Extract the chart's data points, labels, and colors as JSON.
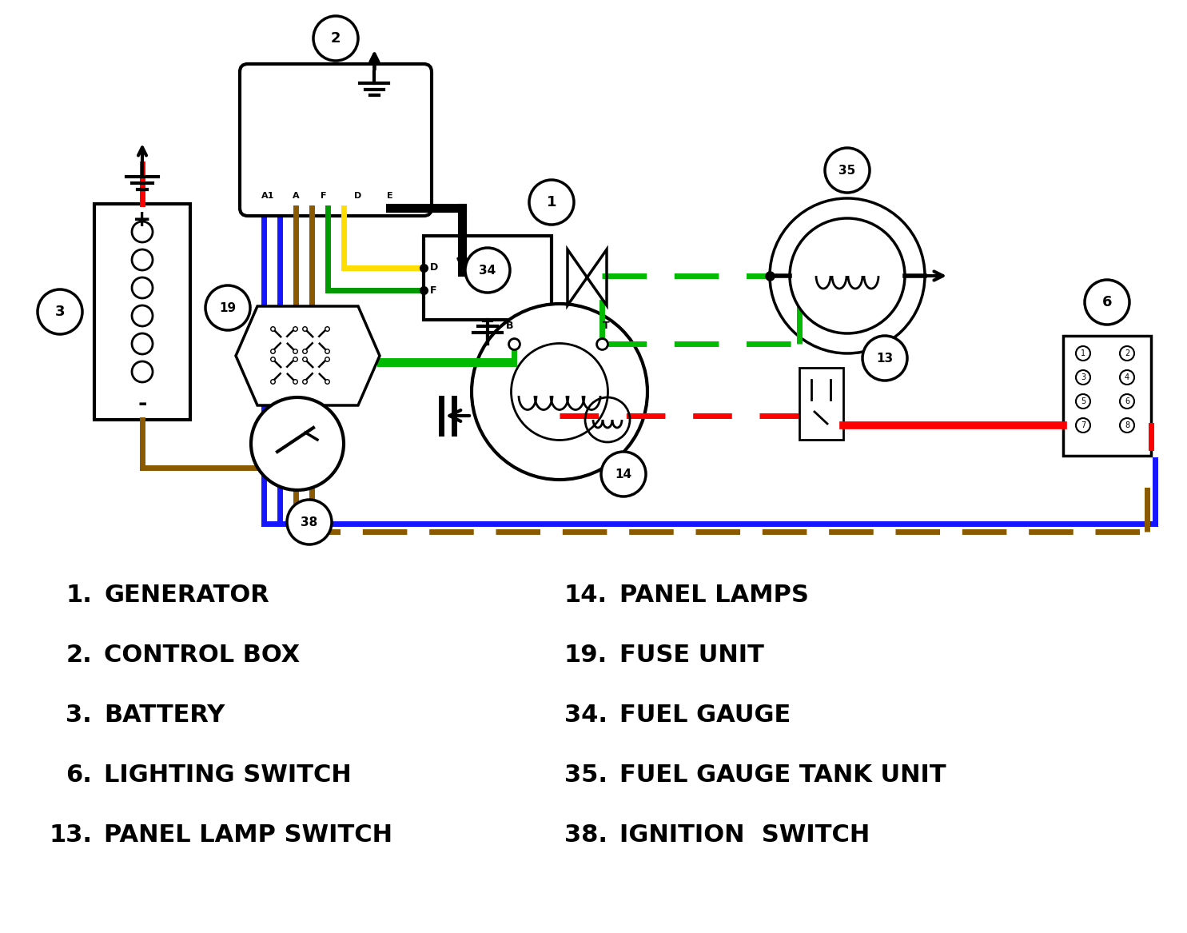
{
  "bg_color": "#ffffff",
  "colors": {
    "blue": "#1515FF",
    "brown": "#8B5A00",
    "green": "#00BB00",
    "green2": "#009900",
    "yellow": "#FFDD00",
    "red": "#FF0000",
    "black": "#000000",
    "white": "#FFFFFF",
    "gray": "#888888",
    "dark_brown": "#6B3A00"
  },
  "legend_left": [
    [
      "1.",
      "GENERATOR"
    ],
    [
      "2.",
      "CONTROL BOX"
    ],
    [
      "3.",
      "BATTERY"
    ],
    [
      "6.",
      "LIGHTING SWITCH"
    ],
    [
      "13.",
      "PANEL LAMP SWITCH"
    ]
  ],
  "legend_right": [
    [
      "14.",
      "PANEL LAMPS"
    ],
    [
      "19.",
      "FUSE UNIT"
    ],
    [
      "34.",
      "FUEL GAUGE"
    ],
    [
      "35.",
      "FUEL GAUGE TANK UNIT"
    ],
    [
      "38.",
      "IGNITION  SWITCH"
    ]
  ]
}
